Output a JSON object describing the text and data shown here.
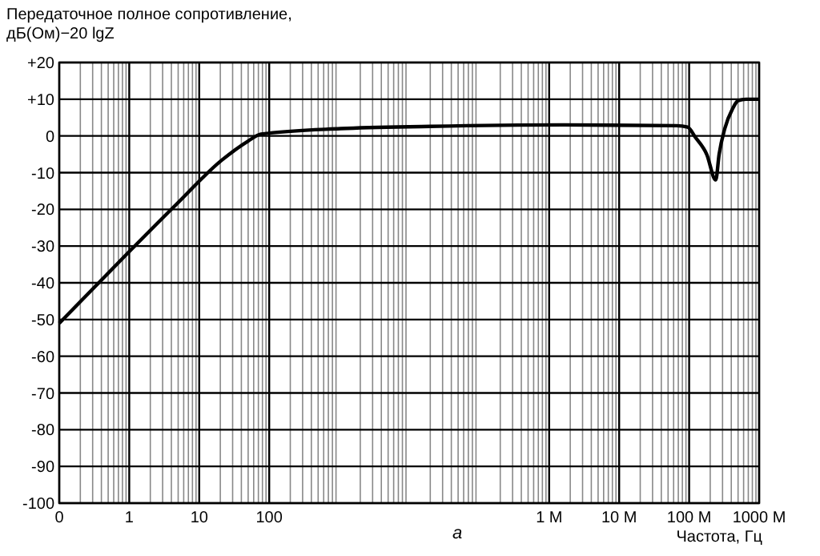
{
  "chart_data": {
    "type": "line",
    "ylabel": "Передаточное полное сопротивление, дБ(Ом)−20 lgZ",
    "xlabel": "Частота, Гц",
    "annotations": [
      "а"
    ],
    "log": "x",
    "grid": true,
    "color": "#000000",
    "marker": "none",
    "line_style": "solid",
    "xlim": [
      0.1,
      1000000000
    ],
    "xticks": [
      {
        "value": 0.1,
        "label": "0"
      },
      1,
      10,
      100,
      {
        "value": 1000000,
        "label": "1 M"
      },
      {
        "value": 10000000,
        "label": "10 M"
      },
      {
        "value": 100000000,
        "label": "100 M"
      },
      {
        "value": 1000000000,
        "label": "1000 M"
      }
    ],
    "ylim": [
      -100,
      20
    ],
    "yticks": [
      {
        "value": 20,
        "label": "+20"
      },
      {
        "value": 10,
        "label": "+10"
      },
      0,
      -10,
      -20,
      -30,
      -40,
      -50,
      -60,
      -70,
      -80,
      -90,
      -100
    ],
    "x": [
      0.1,
      1,
      4.5,
      21,
      49,
      76,
      1047,
      19770,
      1600000,
      66000000,
      95000000,
      123000000,
      178000000,
      240000000,
      268000000,
      323000000,
      417000000,
      500000000,
      650000000,
      1000000000
    ],
    "values": [
      -51,
      -31.5,
      -19,
      -6.6,
      -1.5,
      0.5,
      2,
      2.6,
      3,
      2.8,
      2.4,
      -0.4,
      -5,
      -12,
      -5,
      2,
      7.4,
      9.6,
      10,
      10
    ]
  }
}
